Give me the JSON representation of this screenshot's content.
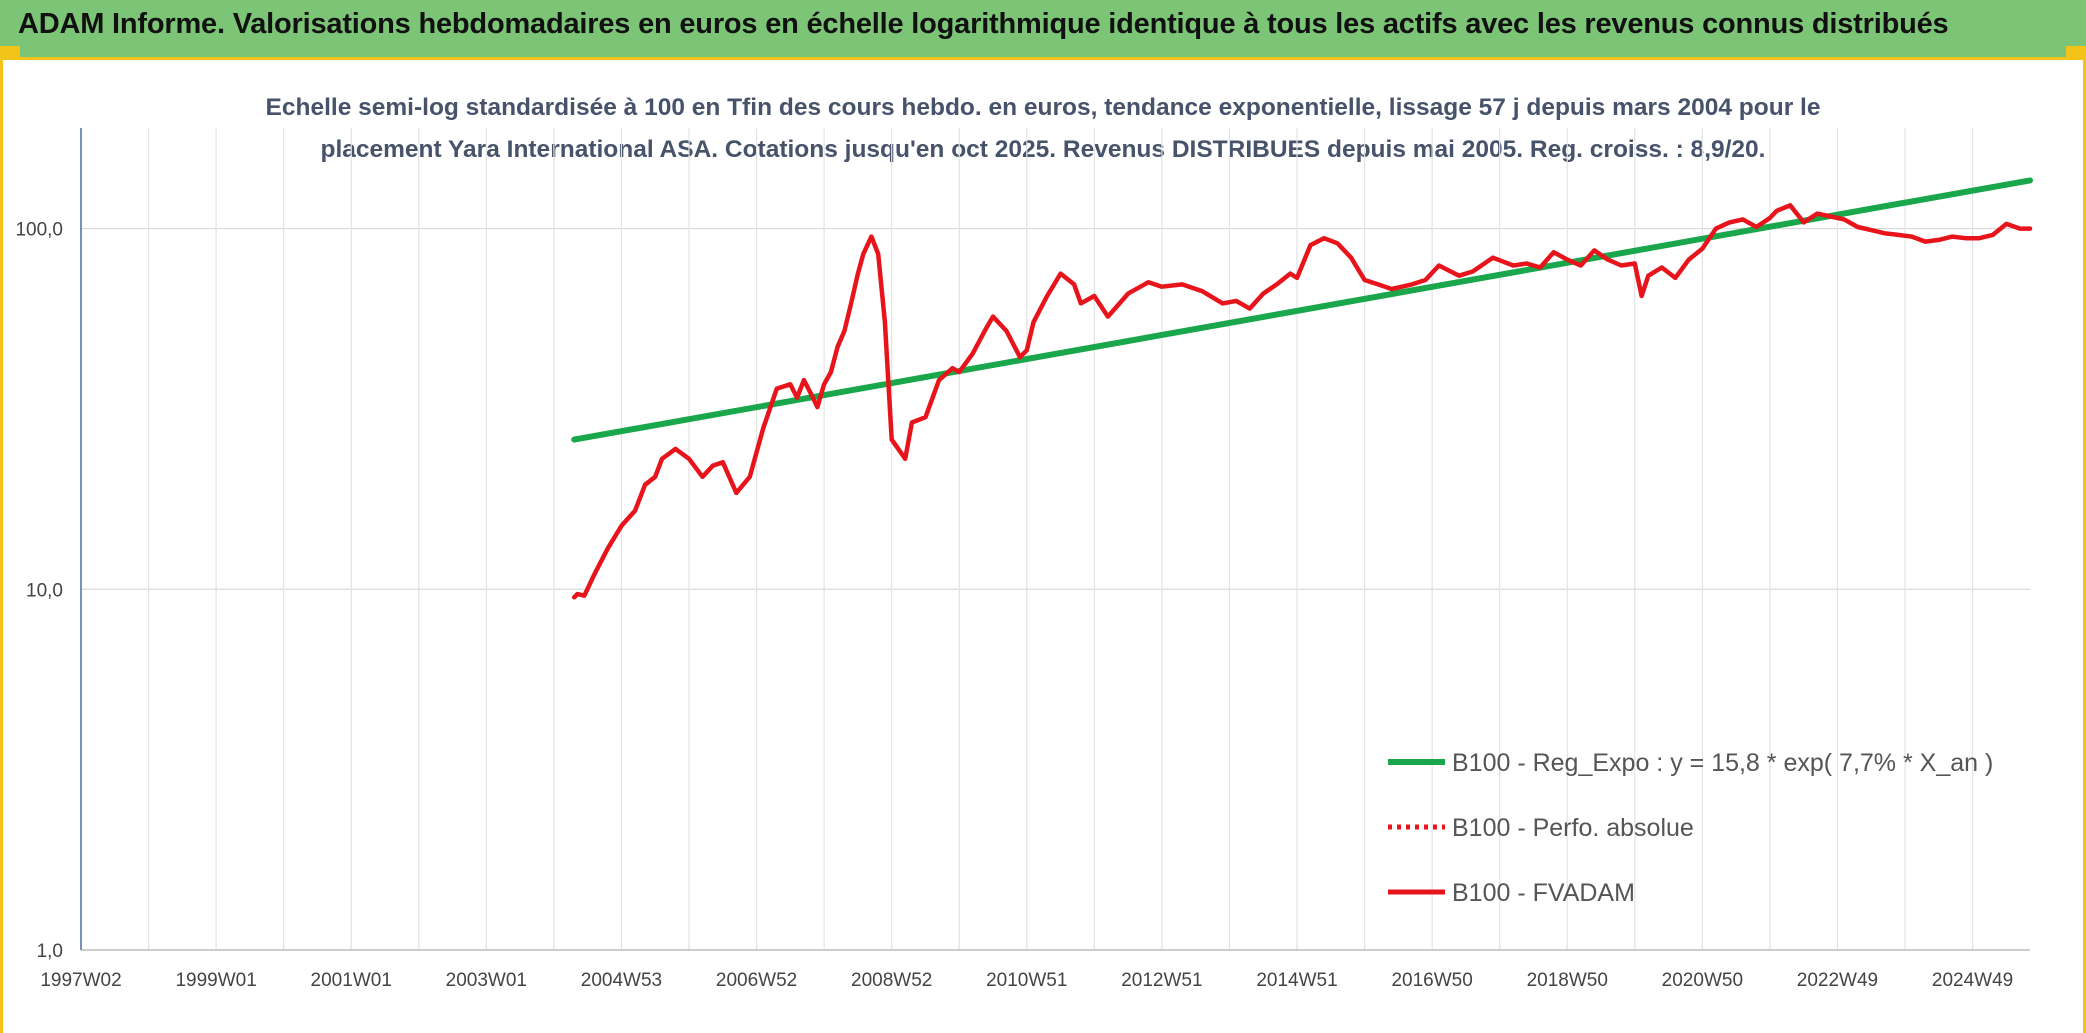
{
  "header": {
    "title": "ADAM Informe. Valorisations hebdomadaires en euros en échelle logarithmique identique à tous les actifs avec les revenus connus distribués"
  },
  "colors": {
    "banner": "#7cc576",
    "accent": "#f2c318",
    "regression": "#1aa64a",
    "fvadam": "#e8141c",
    "perfo": "#e8141c"
  },
  "chart_data": {
    "type": "line",
    "title_lines": [
      "Echelle semi-log standardisée à 100 en Tfin des cours hebdo. en euros, tendance exponentielle, lissage 57 j depuis mars 2004 pour le",
      "placement Yara International ASA. Cotations jusqu'en oct 2025. Revenus DISTRIBUES depuis mai 2005. Reg. croiss. : 8,9/20."
    ],
    "y_scale": "log",
    "ylim": [
      1,
      190
    ],
    "y_ticks": [
      {
        "value": 1,
        "label": "1,0"
      },
      {
        "value": 10,
        "label": "10,0"
      },
      {
        "value": 100,
        "label": "100,0"
      }
    ],
    "xlim": [
      1997.0,
      2025.85
    ],
    "x_ticks": [
      {
        "value": 1997.0,
        "label": "1997W02"
      },
      {
        "value": 1999.0,
        "label": "1999W01"
      },
      {
        "value": 2001.0,
        "label": "2001W01"
      },
      {
        "value": 2003.0,
        "label": "2003W01"
      },
      {
        "value": 2005.0,
        "label": "2004W53"
      },
      {
        "value": 2007.0,
        "label": "2006W52"
      },
      {
        "value": 2009.0,
        "label": "2008W52"
      },
      {
        "value": 2011.0,
        "label": "2010W51"
      },
      {
        "value": 2013.0,
        "label": "2012W51"
      },
      {
        "value": 2015.0,
        "label": "2014W51"
      },
      {
        "value": 2017.0,
        "label": "2016W50"
      },
      {
        "value": 2019.0,
        "label": "2018W50"
      },
      {
        "value": 2021.0,
        "label": "2020W50"
      },
      {
        "value": 2023.0,
        "label": "2022W49"
      },
      {
        "value": 2025.0,
        "label": "2024W49"
      }
    ],
    "x_gridlines": [
      1997.0,
      1998.0,
      1999.0,
      2000.0,
      2001.0,
      2002.0,
      2003.0,
      2004.0,
      2005.0,
      2006.0,
      2007.0,
      2008.0,
      2009.0,
      2010.0,
      2011.0,
      2012.0,
      2013.0,
      2014.0,
      2015.0,
      2016.0,
      2017.0,
      2018.0,
      2019.0,
      2020.0,
      2021.0,
      2022.0,
      2023.0,
      2024.0,
      2025.0
    ],
    "grid": true,
    "legend_position": "bottom-right",
    "series": [
      {
        "name": "B100 - Reg_Expo : y = 15,8 * exp( 7,7% *  X_an )",
        "style": "solid-thick",
        "color": "#1aa64a",
        "x": [
          2004.3,
          2025.85
        ],
        "y": [
          26,
          136
        ]
      },
      {
        "name": "B100 - Perfo. absolue",
        "style": "dotted",
        "color": "#e8141c",
        "x": [],
        "y": []
      },
      {
        "name": "B100 - FVADAM",
        "style": "solid",
        "color": "#e8141c",
        "x": [
          2004.3,
          2004.35,
          2004.45,
          2004.6,
          2004.8,
          2005.0,
          2005.2,
          2005.35,
          2005.5,
          2005.6,
          2005.8,
          2006.0,
          2006.2,
          2006.35,
          2006.5,
          2006.7,
          2006.9,
          2007.0,
          2007.1,
          2007.3,
          2007.5,
          2007.6,
          2007.7,
          2007.8,
          2007.9,
          2008.0,
          2008.1,
          2008.2,
          2008.3,
          2008.4,
          2008.5,
          2008.58,
          2008.7,
          2008.8,
          2008.9,
          2009.0,
          2009.2,
          2009.3,
          2009.5,
          2009.7,
          2009.9,
          2010.0,
          2010.2,
          2010.4,
          2010.5,
          2010.7,
          2010.9,
          2011.0,
          2011.1,
          2011.3,
          2011.5,
          2011.7,
          2011.8,
          2012.0,
          2012.2,
          2012.5,
          2012.8,
          2013.0,
          2013.3,
          2013.6,
          2013.9,
          2014.1,
          2014.3,
          2014.5,
          2014.7,
          2014.9,
          2015.0,
          2015.2,
          2015.4,
          2015.6,
          2015.8,
          2016.0,
          2016.2,
          2016.4,
          2016.7,
          2016.9,
          2017.1,
          2017.4,
          2017.6,
          2017.9,
          2018.2,
          2018.4,
          2018.6,
          2018.8,
          2019.0,
          2019.2,
          2019.4,
          2019.6,
          2019.8,
          2020.0,
          2020.1,
          2020.2,
          2020.4,
          2020.6,
          2020.8,
          2021.0,
          2021.2,
          2021.4,
          2021.6,
          2021.8,
          2022.0,
          2022.1,
          2022.3,
          2022.5,
          2022.7,
          2022.9,
          2023.1,
          2023.3,
          2023.5,
          2023.7,
          2023.9,
          2024.1,
          2024.3,
          2024.5,
          2024.7,
          2024.9,
          2025.1,
          2025.3,
          2025.5,
          2025.7,
          2025.85
        ],
        "y": [
          9.5,
          9.7,
          9.6,
          11.0,
          13.0,
          15.0,
          16.5,
          19.5,
          20.5,
          23.0,
          24.5,
          23.0,
          20.5,
          22.0,
          22.5,
          18.5,
          20.5,
          24.0,
          28.0,
          36.0,
          37.0,
          34.0,
          38.0,
          35.0,
          32.0,
          37.0,
          40.0,
          47.0,
          52.0,
          62.0,
          75.0,
          85.0,
          95.0,
          85.0,
          55.0,
          26.0,
          23.0,
          29.0,
          30.0,
          38.0,
          41.0,
          40.0,
          45.0,
          53.0,
          57.0,
          52.0,
          44.0,
          46.0,
          55.0,
          65.0,
          75.0,
          70.0,
          62.0,
          65.0,
          57.0,
          66.0,
          71.0,
          69.0,
          70.0,
          67.0,
          62.0,
          63.0,
          60.0,
          66.0,
          70.0,
          75.0,
          73.0,
          90.0,
          94.0,
          91.0,
          83.0,
          72.0,
          70.0,
          68.0,
          70.0,
          72.0,
          79.0,
          74.0,
          76.0,
          83.0,
          79.0,
          80.0,
          78.0,
          86.0,
          82.0,
          79.0,
          87.0,
          82.0,
          79.0,
          80.0,
          65.0,
          74.0,
          78.0,
          73.0,
          82.0,
          88.0,
          100.0,
          104.0,
          106.0,
          101.0,
          107.0,
          112.0,
          116.0,
          104.0,
          110.0,
          108.0,
          106.0,
          101.0,
          99.0,
          97.0,
          96.0,
          95.0,
          92.0,
          93.0,
          95.0,
          94.0,
          94.0,
          96.0,
          103.0,
          100.0,
          100.0
        ]
      }
    ]
  }
}
